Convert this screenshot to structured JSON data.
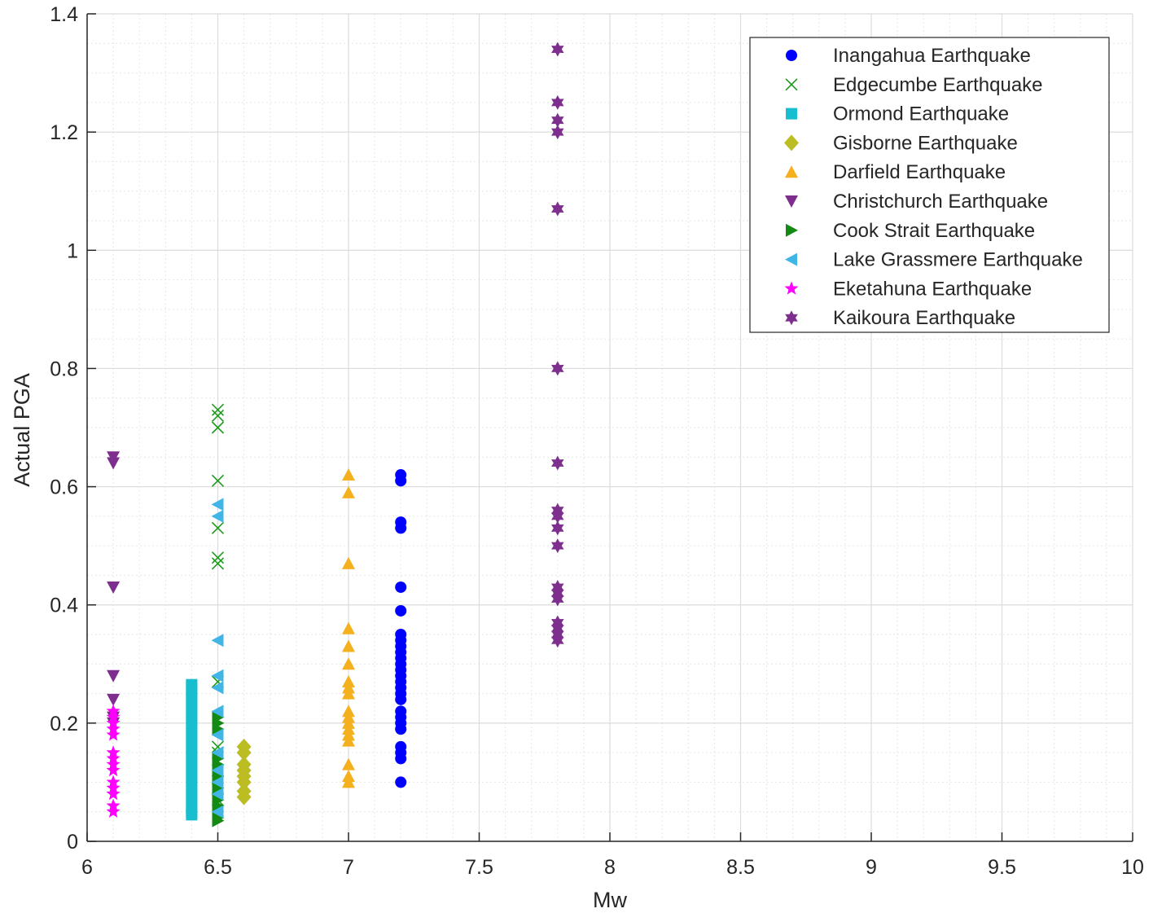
{
  "chart_data": {
    "type": "scatter",
    "title": "",
    "xlabel": "Mw",
    "ylabel": "Actual PGA",
    "xlim": [
      6,
      10
    ],
    "ylim": [
      0,
      1.4
    ],
    "xticks": [
      "6",
      "6.5",
      "7",
      "7.5",
      "8",
      "8.5",
      "9",
      "9.5",
      "10"
    ],
    "yticks": [
      "0",
      "0.2",
      "0.4",
      "0.6",
      "0.8",
      "1",
      "1.2",
      "1.4"
    ],
    "grid": true,
    "minor_grid": true,
    "legend_position": "top-right",
    "series": [
      {
        "name": "Inangahua Earthquake",
        "marker": "circle",
        "color": "#0000ff",
        "x": [
          7.2,
          7.2,
          7.2,
          7.2,
          7.2,
          7.2,
          7.2,
          7.2,
          7.2,
          7.2,
          7.2,
          7.2,
          7.2,
          7.2,
          7.2,
          7.2,
          7.2,
          7.2,
          7.2,
          7.2,
          7.2,
          7.2,
          7.2,
          7.2,
          7.2,
          7.2
        ],
        "y": [
          0.62,
          0.61,
          0.54,
          0.53,
          0.43,
          0.39,
          0.35,
          0.34,
          0.32,
          0.31,
          0.3,
          0.29,
          0.28,
          0.27,
          0.25,
          0.24,
          0.22,
          0.21,
          0.2,
          0.19,
          0.16,
          0.15,
          0.14,
          0.1,
          0.33,
          0.26
        ]
      },
      {
        "name": "Edgecumbe Earthquake",
        "marker": "x",
        "color": "#1f9a1f",
        "x": [
          6.5,
          6.5,
          6.5,
          6.5,
          6.5,
          6.5,
          6.5,
          6.5,
          6.5,
          6.5,
          6.5,
          6.5,
          6.5
        ],
        "y": [
          0.73,
          0.72,
          0.7,
          0.61,
          0.53,
          0.48,
          0.47,
          0.27,
          0.16,
          0.15,
          0.12,
          0.09,
          0.07
        ]
      },
      {
        "name": "Ormond Earthquake",
        "marker": "square",
        "color": "#17becf",
        "x": [
          6.4,
          6.4,
          6.4,
          6.4,
          6.4,
          6.4,
          6.4,
          6.4,
          6.4,
          6.4,
          6.4,
          6.4,
          6.4,
          6.4,
          6.4,
          6.4,
          6.4,
          6.4,
          6.4,
          6.4,
          6.4,
          6.4,
          6.4,
          6.4
        ],
        "y": [
          0.26,
          0.25,
          0.24,
          0.23,
          0.22,
          0.21,
          0.2,
          0.19,
          0.18,
          0.17,
          0.16,
          0.15,
          0.14,
          0.13,
          0.12,
          0.11,
          0.1,
          0.09,
          0.08,
          0.07,
          0.06,
          0.05,
          0.045,
          0.265
        ]
      },
      {
        "name": "Gisborne Earthquake",
        "marker": "diamond",
        "color": "#bcbd22",
        "x": [
          6.6,
          6.6,
          6.6,
          6.6,
          6.6,
          6.6,
          6.6,
          6.6
        ],
        "y": [
          0.16,
          0.15,
          0.13,
          0.12,
          0.11,
          0.1,
          0.085,
          0.075
        ]
      },
      {
        "name": "Darfield Earthquake",
        "marker": "triangle-up",
        "color": "#f5b01e",
        "x": [
          7.0,
          7.0,
          7.0,
          7.0,
          7.0,
          7.0,
          7.0,
          7.0,
          7.0,
          7.0,
          7.0,
          7.0,
          7.0,
          7.0,
          7.0,
          7.0,
          7.0,
          7.0
        ],
        "y": [
          0.62,
          0.59,
          0.47,
          0.36,
          0.33,
          0.3,
          0.27,
          0.26,
          0.25,
          0.22,
          0.21,
          0.2,
          0.19,
          0.18,
          0.17,
          0.13,
          0.11,
          0.1
        ]
      },
      {
        "name": "Christchurch Earthquake",
        "marker": "triangle-down",
        "color": "#7e2f8e",
        "x": [
          6.1,
          6.1,
          6.1,
          6.1,
          6.1,
          6.1,
          6.1
        ],
        "y": [
          0.65,
          0.64,
          0.43,
          0.28,
          0.24,
          0.21,
          0.2
        ]
      },
      {
        "name": "Cook Strait Earthquake",
        "marker": "triangle-right",
        "color": "#138a13",
        "x": [
          6.5,
          6.5,
          6.5,
          6.5,
          6.5,
          6.5,
          6.5,
          6.5,
          6.5,
          6.5,
          6.5,
          6.5
        ],
        "y": [
          0.21,
          0.2,
          0.19,
          0.14,
          0.13,
          0.11,
          0.09,
          0.07,
          0.06,
          0.05,
          0.04,
          0.035
        ]
      },
      {
        "name": "Lake Grassmere Earthquake",
        "marker": "triangle-left",
        "color": "#41b6e6",
        "x": [
          6.5,
          6.5,
          6.5,
          6.5,
          6.5,
          6.5,
          6.5,
          6.5,
          6.5,
          6.5,
          6.5,
          6.5
        ],
        "y": [
          0.57,
          0.55,
          0.34,
          0.28,
          0.26,
          0.22,
          0.18,
          0.15,
          0.12,
          0.1,
          0.08,
          0.05
        ]
      },
      {
        "name": "Eketahuna Earthquake",
        "marker": "star",
        "color": "#ff00ff",
        "x": [
          6.1,
          6.1,
          6.1,
          6.1,
          6.1,
          6.1,
          6.1,
          6.1,
          6.1,
          6.1,
          6.1,
          6.1,
          6.1,
          6.1
        ],
        "y": [
          0.22,
          0.21,
          0.2,
          0.19,
          0.18,
          0.15,
          0.14,
          0.13,
          0.12,
          0.1,
          0.09,
          0.08,
          0.06,
          0.05
        ]
      },
      {
        "name": "Kaikoura Earthquake",
        "marker": "hexagram",
        "color": "#7e2f8e",
        "x": [
          7.8,
          7.8,
          7.8,
          7.8,
          7.8,
          7.8,
          7.8,
          7.8,
          7.8,
          7.8,
          7.8,
          7.8,
          7.8,
          7.8,
          7.8,
          7.8,
          7.8,
          7.8
        ],
        "y": [
          1.34,
          1.25,
          1.22,
          1.2,
          1.07,
          0.8,
          0.64,
          0.56,
          0.55,
          0.53,
          0.5,
          0.43,
          0.42,
          0.41,
          0.37,
          0.35,
          0.34,
          0.36
        ]
      }
    ]
  }
}
